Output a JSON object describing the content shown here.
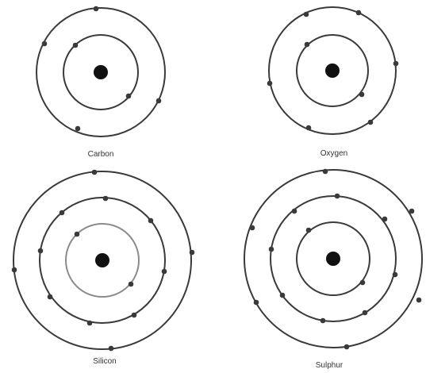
{
  "atoms": [
    {
      "key": "carbon",
      "label": "Carbon",
      "shell_electrons": [
        2,
        4
      ]
    },
    {
      "key": "oxygen",
      "label": "Oxygen",
      "shell_electrons": [
        2,
        6
      ]
    },
    {
      "key": "silicon",
      "label": "Silicon",
      "shell_electrons": [
        2,
        8,
        4
      ]
    },
    {
      "key": "sulphur",
      "label": "Sulphur",
      "shell_electrons": [
        2,
        8,
        6
      ]
    }
  ],
  "colors": {
    "orbit": "#3a3a3a",
    "orbit_highlight": "#8a8a8a",
    "electron": "#3a3a3a",
    "nucleus": "#111111",
    "label": "#333333"
  }
}
